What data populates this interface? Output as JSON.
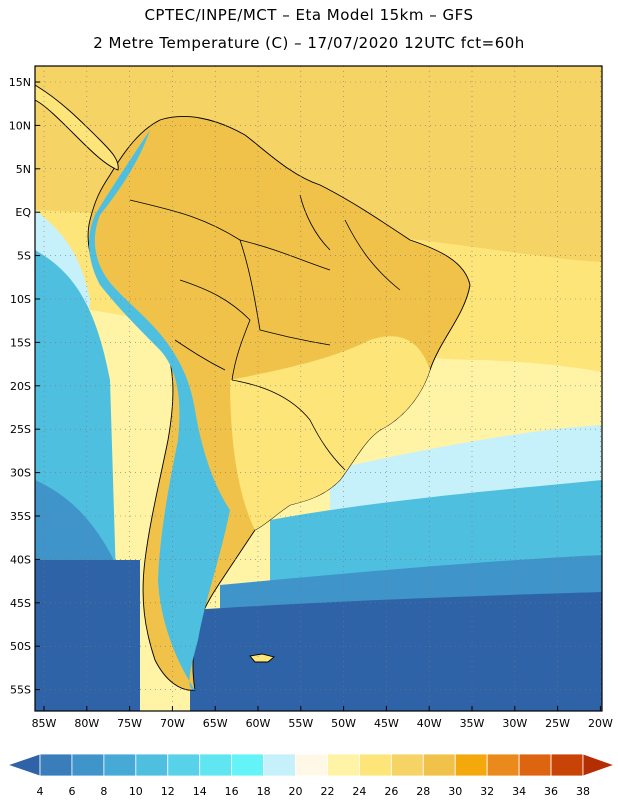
{
  "header": {
    "line1": "CPTEC/INPE/MCT –  Eta Model 15km – GFS",
    "line2": "2 Metre Temperature (C) – 17/07/2020 12UTC fct=60h"
  },
  "axes": {
    "lat_labels": [
      "15N",
      "10N",
      "5N",
      "EQ",
      "5S",
      "10S",
      "15S",
      "20S",
      "25S",
      "30S",
      "35S",
      "40S",
      "45S",
      "50S",
      "55S"
    ],
    "lon_labels": [
      "85W",
      "80W",
      "75W",
      "70W",
      "65W",
      "60W",
      "55W",
      "50W",
      "45W",
      "40W",
      "35W",
      "30W",
      "25W",
      "20W"
    ]
  },
  "colorbar": {
    "labels": [
      "4",
      "6",
      "8",
      "10",
      "12",
      "14",
      "16",
      "18",
      "20",
      "22",
      "24",
      "26",
      "28",
      "30",
      "32",
      "34",
      "36",
      "38"
    ],
    "colors": [
      "#2f63a8",
      "#3a7dbb",
      "#3f95c9",
      "#47a9d6",
      "#4fbfe0",
      "#58d2e8",
      "#5fe6f0",
      "#64f4f7",
      "#c6f1fa",
      "#fff8e6",
      "#fff3a6",
      "#fde57a",
      "#f6d365",
      "#f0c24a",
      "#f3a90b",
      "#ea8a1c",
      "#de6510",
      "#c84406",
      "#b52e03"
    ]
  },
  "map_colors": {
    "ocean_warm": "#f6d365",
    "ocean_mid": "#fde57a",
    "ocean_pale": "#fff3a6",
    "ocean_cool": "#c6f1fa",
    "ocean_cold1": "#4fbfe0",
    "ocean_cold2": "#3f95c9",
    "ocean_cold3": "#2f63a8",
    "land_hot": "#f0c24a",
    "land_warm": "#fde57a",
    "andes": "#4fbfe0",
    "coast": "#000000"
  }
}
